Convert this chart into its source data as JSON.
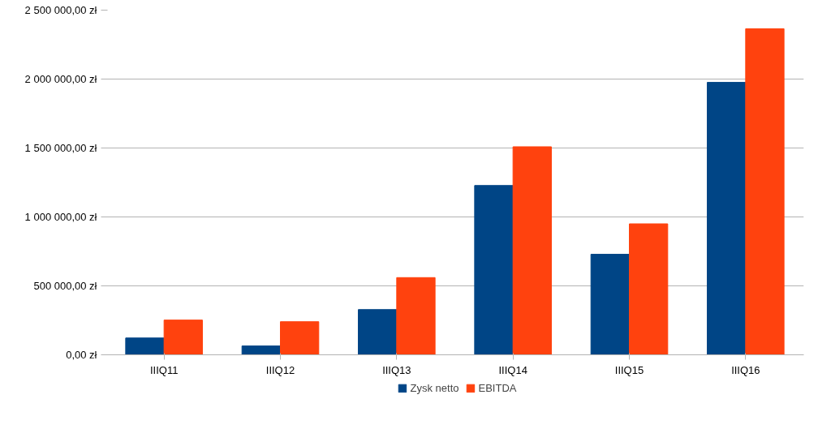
{
  "chart_data": {
    "type": "bar",
    "categories": [
      "IIIQ11",
      "IIIQ12",
      "IIIQ13",
      "IIIQ14",
      "IIIQ15",
      "IIIQ16"
    ],
    "series": [
      {
        "name": "Zysk netto",
        "color": "#004586",
        "values": [
          122000,
          64000,
          328000,
          1228000,
          729000,
          1976000
        ]
      },
      {
        "name": "EBITDA",
        "color": "#ff420e",
        "values": [
          252000,
          240000,
          560000,
          1509000,
          950000,
          2365000
        ]
      }
    ],
    "ylim": [
      0,
      2500000
    ],
    "yticks": [
      {
        "value": 0,
        "label": "0,00 zł"
      },
      {
        "value": 500000,
        "label": "500 000,00 zł"
      },
      {
        "value": 1000000,
        "label": "1 000 000,00 zł"
      },
      {
        "value": 1500000,
        "label": "1 500 000,00 zł"
      },
      {
        "value": 2000000,
        "label": "2 000 000,00 zł"
      },
      {
        "value": 2500000,
        "label": "2 500 000,00 zł"
      }
    ],
    "grid": "y",
    "legend": "bottom"
  }
}
